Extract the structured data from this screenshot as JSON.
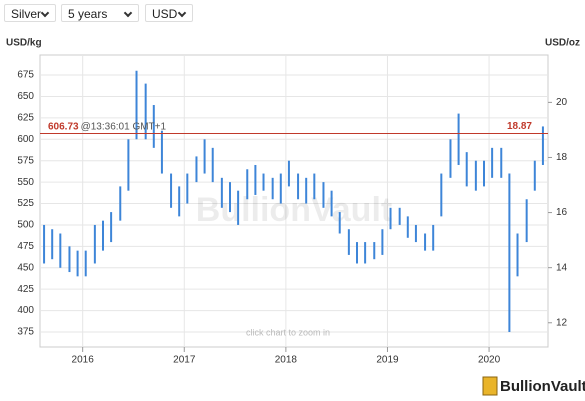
{
  "controls": [
    "Silver",
    "5 years",
    "USD"
  ],
  "chart_data": {
    "type": "range-bar",
    "y_axis_label": "USD/kg",
    "y2_axis_label": "USD/oz",
    "watermark": "BullionVault",
    "hint": "click chart to zoom in",
    "logo": "BullionVault",
    "color": "#3d85d8",
    "line_color": "#c0392b",
    "current_value": 606.73,
    "current_time": "@13:36:01 GMT+1",
    "current_value_oz": 18.87,
    "xlim": [
      2015.58,
      2020.58
    ],
    "xticks": [
      2016,
      2017,
      2018,
      2019,
      2020
    ],
    "ylim": [
      357.5,
      698.4
    ],
    "yticks": [
      375,
      400,
      425,
      450,
      475,
      500,
      525,
      550,
      575,
      600,
      625,
      650,
      675
    ],
    "y2lim": [
      11.12,
      21.72
    ],
    "y2ticks": [
      12,
      14,
      16,
      18,
      20
    ],
    "grid": true,
    "x": [
      2015.62,
      2015.7,
      2015.78,
      2015.87,
      2015.95,
      2016.03,
      2016.12,
      2016.2,
      2016.28,
      2016.37,
      2016.45,
      2016.53,
      2016.62,
      2016.7,
      2016.78,
      2016.87,
      2016.95,
      2017.03,
      2017.12,
      2017.2,
      2017.28,
      2017.37,
      2017.45,
      2017.53,
      2017.62,
      2017.7,
      2017.78,
      2017.87,
      2017.95,
      2018.03,
      2018.12,
      2018.2,
      2018.28,
      2018.37,
      2018.45,
      2018.53,
      2018.62,
      2018.7,
      2018.78,
      2018.87,
      2018.95,
      2019.03,
      2019.12,
      2019.2,
      2019.28,
      2019.37,
      2019.45,
      2019.53,
      2019.62,
      2019.7,
      2019.78,
      2019.87,
      2019.95,
      2020.03,
      2020.12,
      2020.2,
      2020.28,
      2020.37,
      2020.45,
      2020.53
    ],
    "low": [
      455,
      460,
      450,
      445,
      440,
      440,
      455,
      470,
      480,
      505,
      540,
      600,
      600,
      590,
      560,
      520,
      510,
      525,
      550,
      560,
      550,
      520,
      515,
      500,
      530,
      535,
      540,
      530,
      525,
      545,
      530,
      525,
      530,
      520,
      510,
      490,
      465,
      455,
      455,
      460,
      465,
      495,
      500,
      485,
      480,
      470,
      470,
      510,
      555,
      570,
      545,
      540,
      545,
      555,
      555,
      375,
      440,
      480,
      540,
      570
    ],
    "high": [
      500,
      495,
      490,
      475,
      470,
      470,
      500,
      505,
      515,
      545,
      600,
      680,
      665,
      640,
      610,
      560,
      545,
      560,
      580,
      600,
      590,
      555,
      550,
      540,
      565,
      570,
      560,
      555,
      560,
      575,
      560,
      555,
      560,
      550,
      540,
      515,
      495,
      480,
      480,
      480,
      495,
      520,
      520,
      510,
      500,
      490,
      500,
      560,
      600,
      630,
      585,
      575,
      575,
      590,
      590,
      560,
      490,
      530,
      575,
      615
    ]
  }
}
